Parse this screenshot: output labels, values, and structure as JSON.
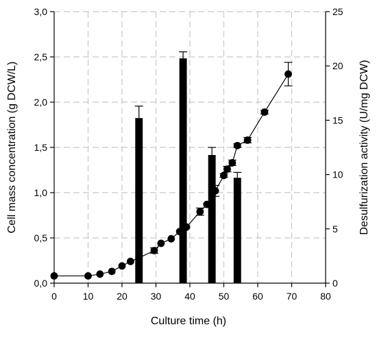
{
  "chart_data": {
    "type": "bar+line",
    "grid": true,
    "x_axis": {
      "label": "Culture time (h)",
      "range": [
        0,
        80
      ],
      "ticks": [
        0,
        10,
        20,
        30,
        40,
        50,
        60,
        70,
        80
      ],
      "tick_labels": [
        "0",
        "10",
        "20",
        "30",
        "40",
        "50",
        "60",
        "70",
        "80"
      ]
    },
    "y_left_axis": {
      "label": "Cell mass concentration (g DCW/L)",
      "range": [
        0,
        3.0
      ],
      "ticks": [
        0,
        0.5,
        1.0,
        1.5,
        2.0,
        2.5,
        3.0
      ],
      "tick_labels": [
        "0,0",
        "0,5",
        "1,0",
        "1,5",
        "2,0",
        "2,5",
        "3,0"
      ]
    },
    "y_right_axis": {
      "label": "Desulfurization activity (U/mg DCW)",
      "range": [
        0,
        25
      ],
      "ticks": [
        0,
        5,
        10,
        15,
        20,
        25
      ],
      "tick_labels": [
        "0",
        "5",
        "10",
        "15",
        "20",
        "25"
      ]
    },
    "line_series": {
      "axis": "left",
      "color": "#000000",
      "marker": "circle",
      "points": [
        {
          "x": 0,
          "y": 0.08,
          "err": 0
        },
        {
          "x": 10,
          "y": 0.08,
          "err": 0
        },
        {
          "x": 13.5,
          "y": 0.1,
          "err": 0
        },
        {
          "x": 17,
          "y": 0.13,
          "err": 0
        },
        {
          "x": 20,
          "y": 0.19,
          "err": 0
        },
        {
          "x": 22.5,
          "y": 0.24,
          "err": 0
        },
        {
          "x": 25,
          "y": 0.28,
          "err": 0
        },
        {
          "x": 29.5,
          "y": 0.36,
          "err": 0.03
        },
        {
          "x": 31.5,
          "y": 0.44,
          "err": 0
        },
        {
          "x": 34.5,
          "y": 0.49,
          "err": 0
        },
        {
          "x": 37,
          "y": 0.57,
          "err": 0
        },
        {
          "x": 39,
          "y": 0.62,
          "err": 0
        },
        {
          "x": 43,
          "y": 0.79,
          "err": 0.04
        },
        {
          "x": 45,
          "y": 0.87,
          "err": 0
        },
        {
          "x": 47.5,
          "y": 1.02,
          "err": 0.06
        },
        {
          "x": 50,
          "y": 1.19,
          "err": 0.02
        },
        {
          "x": 51,
          "y": 1.26,
          "err": 0.03
        },
        {
          "x": 52.5,
          "y": 1.33,
          "err": 0.03
        },
        {
          "x": 54,
          "y": 1.52,
          "err": 0.02
        },
        {
          "x": 57,
          "y": 1.58,
          "err": 0.03
        },
        {
          "x": 62,
          "y": 1.89,
          "err": 0.02
        },
        {
          "x": 69,
          "y": 2.31,
          "err": 0.13
        }
      ]
    },
    "bar_series": {
      "axis": "right",
      "color": "#000000",
      "bar_width_hours": 2.2,
      "bars": [
        {
          "x": 25,
          "y": 15.2,
          "err": 1.1
        },
        {
          "x": 38,
          "y": 20.7,
          "err": 0.6
        },
        {
          "x": 46.5,
          "y": 11.8,
          "err": 0.7
        },
        {
          "x": 54,
          "y": 9.7,
          "err": 0.5
        }
      ]
    }
  }
}
